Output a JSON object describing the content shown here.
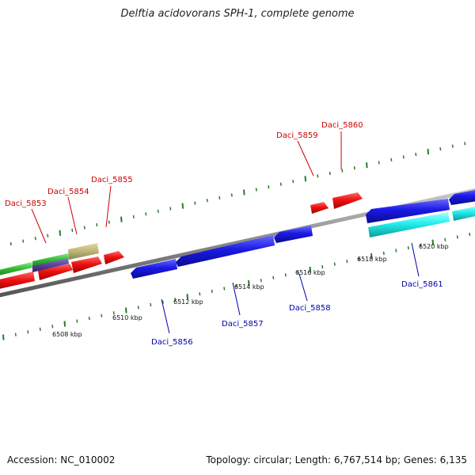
{
  "title": "Delftia acidovorans SPH-1, complete genome",
  "footer": {
    "accession": "Accession: NC_010002",
    "summary": "Topology: circular; Length: 6,767,514 bp; Genes: 6,135"
  },
  "colors": {
    "forward_label": "#cc0000",
    "reverse_label": "#0000aa",
    "tick": "#2a7a2a",
    "backbone": "#888888",
    "gene_red": "#ee1111",
    "gene_blue": "#1a1ae6",
    "gene_cyan": "#22eeee",
    "gene_green": "#33bb33",
    "gene_purple": "#554499",
    "gene_khaki": "#bdb576"
  },
  "scale_labels": [
    "6508 kbp",
    "6510 kbp",
    "6512 kbp",
    "6514 kbp",
    "6516 kbp",
    "6518 kbp",
    "6520 kbp"
  ],
  "forward_genes": [
    "Daci_5853",
    "Daci_5854",
    "Daci_5855",
    "Daci_5859",
    "Daci_5860"
  ],
  "reverse_genes": [
    "Daci_5856",
    "Daci_5857",
    "Daci_5858",
    "Daci_5861"
  ]
}
